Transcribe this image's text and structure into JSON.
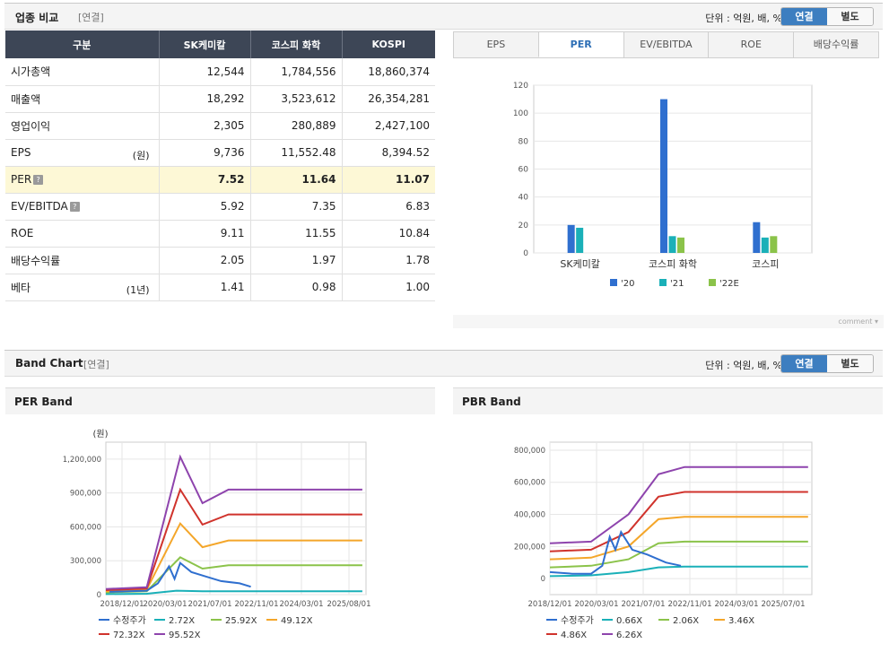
{
  "compare": {
    "title": "업종 비교",
    "sub": "[연결]",
    "unit": "단위 : 억원, 배, %",
    "toggle": [
      "연결",
      "별도"
    ],
    "columns": [
      "구분",
      "SK케미칼",
      "코스피 화학",
      "KOSPI"
    ],
    "rows": [
      {
        "label": "시가총액",
        "note": "",
        "vals": [
          "12,544",
          "1,784,556",
          "18,860,374"
        ]
      },
      {
        "label": "매출액",
        "note": "",
        "vals": [
          "18,292",
          "3,523,612",
          "26,354,281"
        ]
      },
      {
        "label": "영업이익",
        "note": "",
        "vals": [
          "2,305",
          "280,889",
          "2,427,100"
        ]
      },
      {
        "label": "EPS",
        "note": "(원)",
        "vals": [
          "9,736",
          "11,552.48",
          "8,394.52"
        ]
      },
      {
        "label": "PER",
        "note": "",
        "vals": [
          "7.52",
          "11.64",
          "11.07"
        ]
      },
      {
        "label": "EV/EBITDA",
        "note": "",
        "vals": [
          "5.92",
          "7.35",
          "6.83"
        ]
      },
      {
        "label": "ROE",
        "note": "",
        "vals": [
          "9.11",
          "11.55",
          "10.84"
        ]
      },
      {
        "label": "배당수익률",
        "note": "",
        "vals": [
          "2.05",
          "1.97",
          "1.78"
        ]
      },
      {
        "label": "베타",
        "note": "(1년)",
        "vals": [
          "1.41",
          "0.98",
          "1.00"
        ]
      }
    ],
    "tabs": [
      "EPS",
      "PER",
      "EV/EBITDA",
      "ROE",
      "배당수익률"
    ],
    "comment": "comment"
  },
  "band": {
    "title": "Band Chart",
    "sub": "[연결]",
    "unit": "단위 : 억원, 배, %",
    "toggle": [
      "연결",
      "별도"
    ],
    "per_title": "PER Band",
    "pbr_title": "PBR Band"
  },
  "colors": {
    "blue": "#2f6fcf",
    "cyan": "#1ab0b8",
    "green": "#8bc34a",
    "orange": "#f4a62a",
    "red": "#d0332c",
    "purple": "#8e44ad"
  },
  "chart_data": [
    {
      "type": "bar",
      "categories": [
        "SK케미칼",
        "코스피  화학",
        "코스피"
      ],
      "series": [
        {
          "name": "'20",
          "values": [
            20,
            110,
            22
          ]
        },
        {
          "name": "'21",
          "values": [
            18,
            12,
            11
          ]
        },
        {
          "name": "'22E",
          "values": [
            0,
            11,
            12
          ]
        }
      ],
      "ylim": [
        0,
        120
      ],
      "yticks": [
        0,
        20,
        40,
        60,
        80,
        100,
        120
      ]
    },
    {
      "type": "line",
      "title": "PER Band",
      "ylabel": "(원)",
      "ylim": [
        0,
        1350000
      ],
      "yticks": [
        "0",
        "300,000",
        "600,000",
        "900,000",
        "1,200,000"
      ],
      "ytick_values": [
        0,
        300000,
        600000,
        900000,
        1200000
      ],
      "xticks": [
        "2018/12/01",
        "2020/03/01",
        "2021/07/01",
        "2022/11/01",
        "2024/03/01",
        "2025/08/01"
      ],
      "series": [
        {
          "name": "수정주가",
          "points": [
            [
              2019.0,
              25000
            ],
            [
              2020.0,
              35000
            ],
            [
              2020.3,
              100000
            ],
            [
              2020.6,
              250000
            ],
            [
              2020.75,
              140000
            ],
            [
              2020.9,
              280000
            ],
            [
              2021.2,
              200000
            ],
            [
              2021.6,
              160000
            ],
            [
              2022.0,
              120000
            ],
            [
              2022.5,
              100000
            ],
            [
              2022.8,
              70000
            ]
          ]
        },
        {
          "name": "2.72X",
          "points": [
            [
              2018.9,
              5000
            ],
            [
              2020.0,
              8000
            ],
            [
              2020.8,
              35000
            ],
            [
              2021.5,
              30000
            ],
            [
              2022.2,
              30000
            ],
            [
              2023.0,
              30000
            ],
            [
              2025.8,
              30000
            ]
          ]
        },
        {
          "name": "25.92X",
          "points": [
            [
              2018.9,
              20000
            ],
            [
              2020.0,
              30000
            ],
            [
              2020.9,
              330000
            ],
            [
              2021.5,
              230000
            ],
            [
              2022.2,
              260000
            ],
            [
              2023.0,
              260000
            ],
            [
              2025.8,
              260000
            ]
          ]
        },
        {
          "name": "49.12X",
          "points": [
            [
              2018.9,
              30000
            ],
            [
              2020.0,
              45000
            ],
            [
              2020.9,
              630000
            ],
            [
              2021.5,
              420000
            ],
            [
              2022.2,
              480000
            ],
            [
              2023.0,
              480000
            ],
            [
              2025.8,
              480000
            ]
          ]
        },
        {
          "name": "72.32X",
          "points": [
            [
              2018.9,
              40000
            ],
            [
              2020.0,
              55000
            ],
            [
              2020.9,
              930000
            ],
            [
              2021.5,
              620000
            ],
            [
              2022.2,
              710000
            ],
            [
              2023.0,
              710000
            ],
            [
              2025.8,
              710000
            ]
          ]
        },
        {
          "name": "95.52X",
          "points": [
            [
              2018.9,
              50000
            ],
            [
              2020.0,
              65000
            ],
            [
              2020.9,
              1220000
            ],
            [
              2021.5,
              810000
            ],
            [
              2022.2,
              930000
            ],
            [
              2023.0,
              930000
            ],
            [
              2025.8,
              930000
            ]
          ]
        }
      ]
    },
    {
      "type": "line",
      "title": "PBR Band",
      "ylim": [
        -100000,
        850000
      ],
      "yticks": [
        "0",
        "200,000",
        "400,000",
        "600,000",
        "800,000"
      ],
      "ytick_values": [
        0,
        200000,
        400000,
        600000,
        800000
      ],
      "xticks": [
        "2018/12/01",
        "2020/03/01",
        "2021/07/01",
        "2022/11/01",
        "2024/03/01",
        "2025/07/01"
      ],
      "series": [
        {
          "name": "수정주가",
          "points": [
            [
              2018.9,
              40000
            ],
            [
              2019.5,
              30000
            ],
            [
              2020.0,
              30000
            ],
            [
              2020.3,
              80000
            ],
            [
              2020.5,
              260000
            ],
            [
              2020.65,
              180000
            ],
            [
              2020.8,
              290000
            ],
            [
              2021.1,
              180000
            ],
            [
              2021.5,
              150000
            ],
            [
              2022.0,
              100000
            ],
            [
              2022.4,
              80000
            ]
          ]
        },
        {
          "name": "0.66X",
          "points": [
            [
              2018.9,
              15000
            ],
            [
              2020.0,
              20000
            ],
            [
              2021.0,
              40000
            ],
            [
              2021.8,
              70000
            ],
            [
              2022.5,
              75000
            ],
            [
              2025.8,
              75000
            ]
          ]
        },
        {
          "name": "2.06X",
          "points": [
            [
              2018.9,
              70000
            ],
            [
              2020.0,
              80000
            ],
            [
              2021.0,
              120000
            ],
            [
              2021.8,
              220000
            ],
            [
              2022.5,
              230000
            ],
            [
              2025.8,
              230000
            ]
          ]
        },
        {
          "name": "3.46X",
          "points": [
            [
              2018.9,
              120000
            ],
            [
              2020.0,
              130000
            ],
            [
              2021.0,
              200000
            ],
            [
              2021.8,
              370000
            ],
            [
              2022.5,
              385000
            ],
            [
              2025.8,
              385000
            ]
          ]
        },
        {
          "name": "4.86X",
          "points": [
            [
              2018.9,
              170000
            ],
            [
              2020.0,
              180000
            ],
            [
              2021.0,
              290000
            ],
            [
              2021.8,
              510000
            ],
            [
              2022.5,
              540000
            ],
            [
              2025.8,
              540000
            ]
          ]
        },
        {
          "name": "6.26X",
          "points": [
            [
              2018.9,
              220000
            ],
            [
              2020.0,
              230000
            ],
            [
              2021.0,
              400000
            ],
            [
              2021.8,
              650000
            ],
            [
              2022.5,
              695000
            ],
            [
              2025.8,
              695000
            ]
          ]
        }
      ]
    }
  ]
}
